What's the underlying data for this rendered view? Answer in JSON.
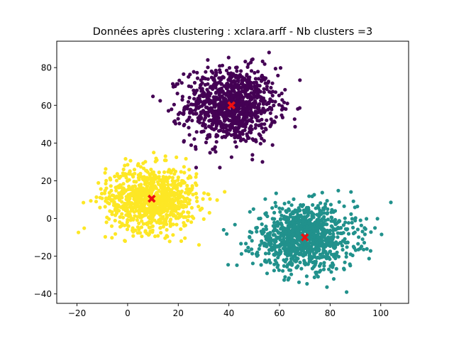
{
  "chart_data": {
    "type": "scatter",
    "title": "Données après clustering : xclara.arff - Nb clusters =3",
    "xlabel": "",
    "ylabel": "",
    "xlim": [
      -28,
      111
    ],
    "ylim": [
      -45,
      94
    ],
    "xticks": [
      -20,
      0,
      20,
      40,
      60,
      80,
      100
    ],
    "yticks": [
      -40,
      -20,
      0,
      20,
      40,
      60,
      80
    ],
    "xtick_labels": [
      "−20",
      "0",
      "20",
      "40",
      "60",
      "80",
      "100"
    ],
    "ytick_labels": [
      "−40",
      "−20",
      "0",
      "20",
      "40",
      "60",
      "80"
    ],
    "grid": false,
    "legend": "none",
    "clusters": [
      {
        "color": "#440154",
        "center": [
          41,
          60
        ],
        "spread": [
          9,
          10
        ],
        "count": 1000,
        "x_range": [
          10,
          72
        ],
        "y_range": [
          27,
          88
        ]
      },
      {
        "color": "#fde725",
        "center": [
          9.5,
          10.5
        ],
        "spread": [
          9,
          8.5
        ],
        "count": 900,
        "x_range": [
          -23,
          40
        ],
        "y_range": [
          -21,
          38
        ]
      },
      {
        "color": "#21918c",
        "center": [
          70,
          -10
        ],
        "spread": [
          10,
          8.5
        ],
        "count": 1000,
        "x_range": [
          35,
          104
        ],
        "y_range": [
          -39,
          26
        ]
      }
    ],
    "centroids": {
      "color": "#ee1111",
      "marker": "x",
      "points": [
        [
          41,
          60
        ],
        [
          9.5,
          10.5
        ],
        [
          70,
          -10
        ]
      ]
    }
  }
}
